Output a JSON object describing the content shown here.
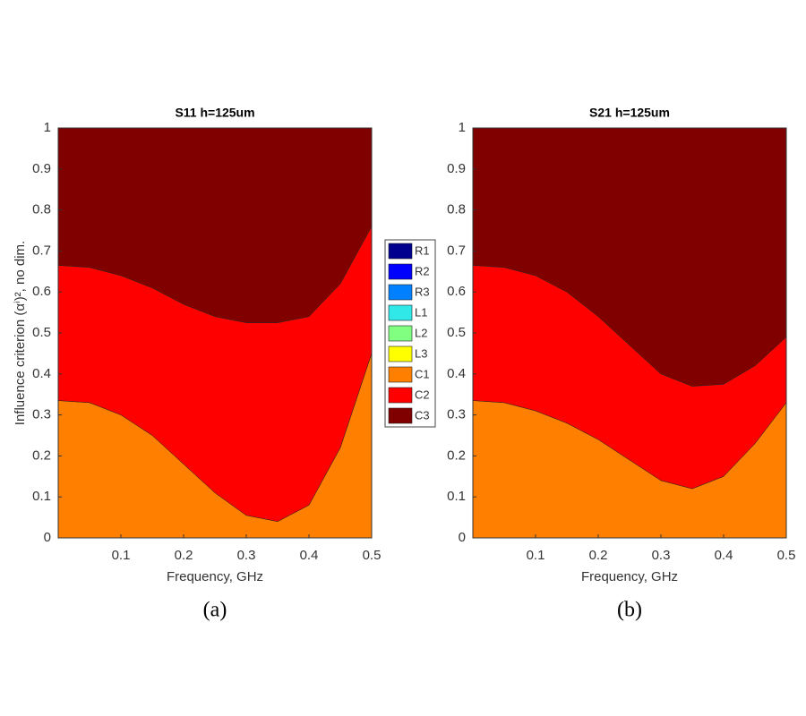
{
  "chart_data": [
    {
      "type": "stacked_area",
      "title": "S11 h=125um",
      "xlabel": "Frequency, GHz",
      "ylabel": "Influence criterion (αⁱ)², no dim.",
      "caption": "(a)",
      "x": [
        0,
        0.05,
        0.1,
        0.15,
        0.2,
        0.25,
        0.3,
        0.35,
        0.4,
        0.45,
        0.5
      ],
      "xlim": [
        0,
        0.5
      ],
      "xticks": [
        0.1,
        0.2,
        0.3,
        0.4,
        0.5
      ],
      "ylim": [
        0,
        1
      ],
      "yticks": [
        0,
        0.1,
        0.2,
        0.3,
        0.4,
        0.5,
        0.6,
        0.7,
        0.8,
        0.9,
        1
      ],
      "series": [
        {
          "name": "R1",
          "color": "#00008f",
          "values": [
            0,
            0,
            0,
            0,
            0,
            0,
            0,
            0,
            0,
            0,
            0
          ]
        },
        {
          "name": "R2",
          "color": "#0000ff",
          "values": [
            0,
            0,
            0,
            0,
            0,
            0,
            0,
            0,
            0,
            0,
            0
          ]
        },
        {
          "name": "R3",
          "color": "#0080ff",
          "values": [
            0,
            0,
            0,
            0,
            0,
            0,
            0,
            0,
            0,
            0,
            0
          ]
        },
        {
          "name": "L1",
          "color": "#30e8e8",
          "values": [
            0,
            0,
            0,
            0,
            0,
            0,
            0,
            0,
            0,
            0,
            0
          ]
        },
        {
          "name": "L2",
          "color": "#80ff80",
          "values": [
            0,
            0,
            0,
            0,
            0,
            0,
            0,
            0,
            0,
            0,
            0
          ]
        },
        {
          "name": "L3",
          "color": "#ffff00",
          "values": [
            0,
            0,
            0,
            0,
            0,
            0,
            0,
            0,
            0,
            0,
            0
          ]
        },
        {
          "name": "C1",
          "color": "#ff8000",
          "values": [
            0.335,
            0.33,
            0.3,
            0.25,
            0.18,
            0.11,
            0.055,
            0.04,
            0.08,
            0.22,
            0.45
          ]
        },
        {
          "name": "C2",
          "color": "#ff0000",
          "values": [
            0.33,
            0.33,
            0.34,
            0.36,
            0.39,
            0.43,
            0.47,
            0.485,
            0.46,
            0.4,
            0.31
          ]
        },
        {
          "name": "C3",
          "color": "#800000",
          "values": [
            0.335,
            0.34,
            0.36,
            0.39,
            0.43,
            0.46,
            0.475,
            0.475,
            0.46,
            0.38,
            0.24
          ]
        }
      ]
    },
    {
      "type": "stacked_area",
      "title": "S21 h=125um",
      "xlabel": "Frequency, GHz",
      "caption": "(b)",
      "x": [
        0,
        0.05,
        0.1,
        0.15,
        0.2,
        0.25,
        0.3,
        0.35,
        0.4,
        0.45,
        0.5
      ],
      "xlim": [
        0,
        0.5
      ],
      "xticks": [
        0.1,
        0.2,
        0.3,
        0.4,
        0.5
      ],
      "ylim": [
        0,
        1
      ],
      "yticks": [
        0,
        0.1,
        0.2,
        0.3,
        0.4,
        0.5,
        0.6,
        0.7,
        0.8,
        0.9,
        1
      ],
      "series": [
        {
          "color": "#ff8000",
          "values": [
            0.335,
            0.33,
            0.31,
            0.28,
            0.24,
            0.19,
            0.14,
            0.12,
            0.15,
            0.23,
            0.33
          ]
        },
        {
          "color": "#ff0000",
          "values": [
            0.33,
            0.33,
            0.33,
            0.32,
            0.3,
            0.28,
            0.26,
            0.25,
            0.225,
            0.19,
            0.16
          ]
        },
        {
          "color": "#800000",
          "values": [
            0.335,
            0.34,
            0.36,
            0.4,
            0.46,
            0.53,
            0.6,
            0.63,
            0.625,
            0.58,
            0.51
          ]
        }
      ]
    }
  ]
}
